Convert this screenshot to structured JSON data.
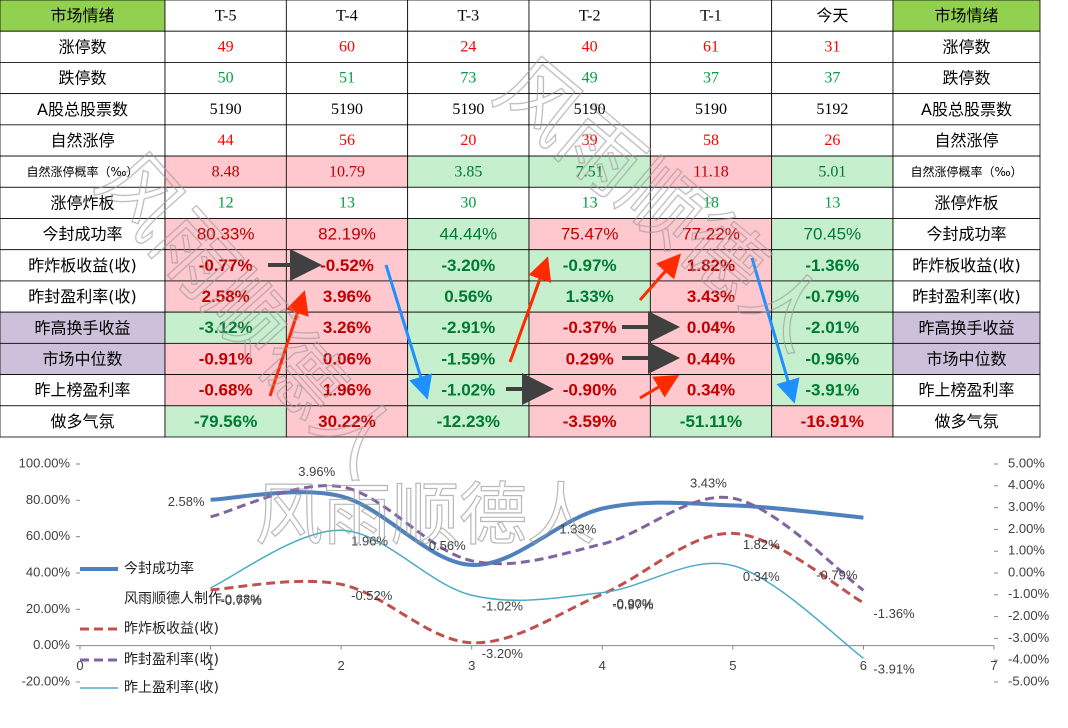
{
  "watermark": "风雨顺德人",
  "table": {
    "header": [
      "市场情绪",
      "T-5",
      "T-4",
      "T-3",
      "T-2",
      "T-1",
      "今天"
    ],
    "header_fill": "#92d050",
    "rows": [
      {
        "label": "涨停数",
        "values": [
          "49",
          "60",
          "24",
          "40",
          "61",
          "31"
        ],
        "text_color": "#ff0000"
      },
      {
        "label": "跌停数",
        "values": [
          "50",
          "51",
          "73",
          "49",
          "37",
          "37"
        ],
        "text_color": "#00a040"
      },
      {
        "label": "A股总股票数",
        "values": [
          "5190",
          "5190",
          "5190",
          "5190",
          "5190",
          "5192"
        ],
        "text_color": "#000000"
      },
      {
        "label": "自然涨停",
        "values": [
          "44",
          "56",
          "20",
          "39",
          "58",
          "26"
        ],
        "text_color": "#ff0000"
      },
      {
        "label": "自然涨停概率（‰）",
        "values": [
          "8.48",
          "10.79",
          "3.85",
          "7.51",
          "11.18",
          "5.01"
        ],
        "fills": [
          "#ffc7ce",
          "#ffc7ce",
          "#c6efce",
          "#c6efce",
          "#ffc7ce",
          "#c6efce"
        ],
        "small_label": true
      },
      {
        "label": "涨停炸板",
        "values": [
          "12",
          "13",
          "30",
          "13",
          "18",
          "13"
        ],
        "text_color": "#00a040"
      },
      {
        "label": "今封成功率",
        "values": [
          "80.33%",
          "82.19%",
          "44.44%",
          "75.47%",
          "77.22%",
          "70.45%"
        ],
        "fills": [
          "#ffc7ce",
          "#ffc7ce",
          "#c6efce",
          "#ffc7ce",
          "#ffc7ce",
          "#c6efce"
        ],
        "sans": true
      },
      {
        "label": "昨炸板收益(收)",
        "values": [
          "-0.77%",
          "-0.52%",
          "-3.20%",
          "-0.97%",
          "1.82%",
          "-1.36%"
        ],
        "fills": [
          "#ffc7ce",
          "#ffc7ce",
          "#c6efce",
          "#c6efce",
          "#ffc7ce",
          "#c6efce"
        ],
        "sans": true,
        "bold": true
      },
      {
        "label": "昨封盈利率(收)",
        "values": [
          "2.58%",
          "3.96%",
          "0.56%",
          "1.33%",
          "3.43%",
          "-0.79%"
        ],
        "fills": [
          "#ffc7ce",
          "#ffc7ce",
          "#c6efce",
          "#c6efce",
          "#ffc7ce",
          "#c6efce"
        ],
        "sans": true,
        "bold": true
      },
      {
        "label": "昨高换手收益",
        "values": [
          "-3.12%",
          "3.26%",
          "-2.91%",
          "-0.37%",
          "0.04%",
          "-2.01%"
        ],
        "fills": [
          "#c6efce",
          "#ffc7ce",
          "#c6efce",
          "#ffc7ce",
          "#ffc7ce",
          "#c6efce"
        ],
        "sans": true,
        "bold": true,
        "label_fill": "#ccc0da"
      },
      {
        "label": "市场中位数",
        "values": [
          "-0.91%",
          "0.06%",
          "-1.59%",
          "0.29%",
          "0.44%",
          "-0.96%"
        ],
        "fills": [
          "#ffc7ce",
          "#ffc7ce",
          "#c6efce",
          "#ffc7ce",
          "#ffc7ce",
          "#c6efce"
        ],
        "sans": true,
        "bold": true,
        "label_fill": "#ccc0da"
      },
      {
        "label": "昨上榜盈利率",
        "values": [
          "-0.68%",
          "1.96%",
          "-1.02%",
          "-0.90%",
          "0.34%",
          "-3.91%"
        ],
        "fills": [
          "#ffc7ce",
          "#ffc7ce",
          "#c6efce",
          "#ffc7ce",
          "#ffc7ce",
          "#c6efce"
        ],
        "sans": true,
        "bold": true
      },
      {
        "label": "做多气氛",
        "values": [
          "-79.56%",
          "30.22%",
          "-12.23%",
          "-3.59%",
          "-51.11%",
          "-16.91%"
        ],
        "fills": [
          "#c6efce",
          "#ffc7ce",
          "#c6efce",
          "#ffc7ce",
          "#c6efce",
          "#ffc7ce"
        ],
        "sans": true,
        "bold": true
      }
    ]
  },
  "chart_data": {
    "type": "line",
    "x": [
      1,
      2,
      3,
      4,
      5,
      6
    ],
    "xlim": [
      0,
      7
    ],
    "xticks": [
      0,
      1,
      2,
      3,
      4,
      5,
      6,
      7
    ],
    "ylim": [
      -20,
      100
    ],
    "yticks": [
      {
        "value": -20,
        "label": "-20.00%"
      },
      {
        "value": 0,
        "label": "0.00%"
      },
      {
        "value": 20,
        "label": "20.00%"
      },
      {
        "value": 40,
        "label": "40.00%"
      },
      {
        "value": 60,
        "label": "60.00%"
      },
      {
        "value": 80,
        "label": "80.00%"
      },
      {
        "value": 100,
        "label": "100.00%"
      }
    ],
    "y2lim": [
      -5,
      5
    ],
    "y2ticks": [
      {
        "value": -5,
        "label": "-5.00%"
      },
      {
        "value": -4,
        "label": "-4.00%"
      },
      {
        "value": -3,
        "label": "-3.00%"
      },
      {
        "value": -2,
        "label": "-2.00%"
      },
      {
        "value": -1,
        "label": "-1.00%"
      },
      {
        "value": 0,
        "label": "0.00%"
      },
      {
        "value": 1,
        "label": "1.00%"
      },
      {
        "value": 2,
        "label": "2.00%"
      },
      {
        "value": 3,
        "label": "3.00%"
      },
      {
        "value": 4,
        "label": "4.00%"
      },
      {
        "value": 5,
        "label": "5.00%"
      }
    ],
    "credit": "风雨顺德人制作",
    "series": [
      {
        "name": "今封成功率",
        "color": "#4f81bd",
        "values": [
          80.33,
          82.19,
          44.44,
          75.47,
          77.22,
          70.45
        ],
        "axis": "y",
        "width": 4
      },
      {
        "name": "昨炸板收益(收)",
        "color": "#c0504d",
        "values": [
          -0.77,
          -0.52,
          -3.2,
          -0.97,
          1.82,
          -1.36
        ],
        "value_labels": [
          "-0.77%",
          "-0.52%",
          "-3.20%",
          "-0.97%",
          "1.82%",
          "-1.36%"
        ],
        "axis": "y2",
        "dash": true,
        "width": 3
      },
      {
        "name": "昨封盈利率(收)",
        "color": "#8064a2",
        "values": [
          2.58,
          3.96,
          0.56,
          1.33,
          3.43,
          -0.79
        ],
        "value_labels": [
          "2.58%",
          "3.96%",
          "0.56%",
          "1.33%",
          "3.43%",
          "-0.79%"
        ],
        "axis": "y2",
        "dash": true,
        "width": 3
      },
      {
        "name": "昨上盈利率(收)",
        "color": "#4bacc6",
        "values": [
          -0.68,
          1.96,
          -1.02,
          -0.9,
          0.34,
          -3.91
        ],
        "value_labels": [
          "-0.68%",
          "1.96%",
          "-1.02%",
          "-0.90%",
          "0.34%",
          "-3.91%"
        ],
        "axis": "y2",
        "width": 1.5
      }
    ]
  }
}
